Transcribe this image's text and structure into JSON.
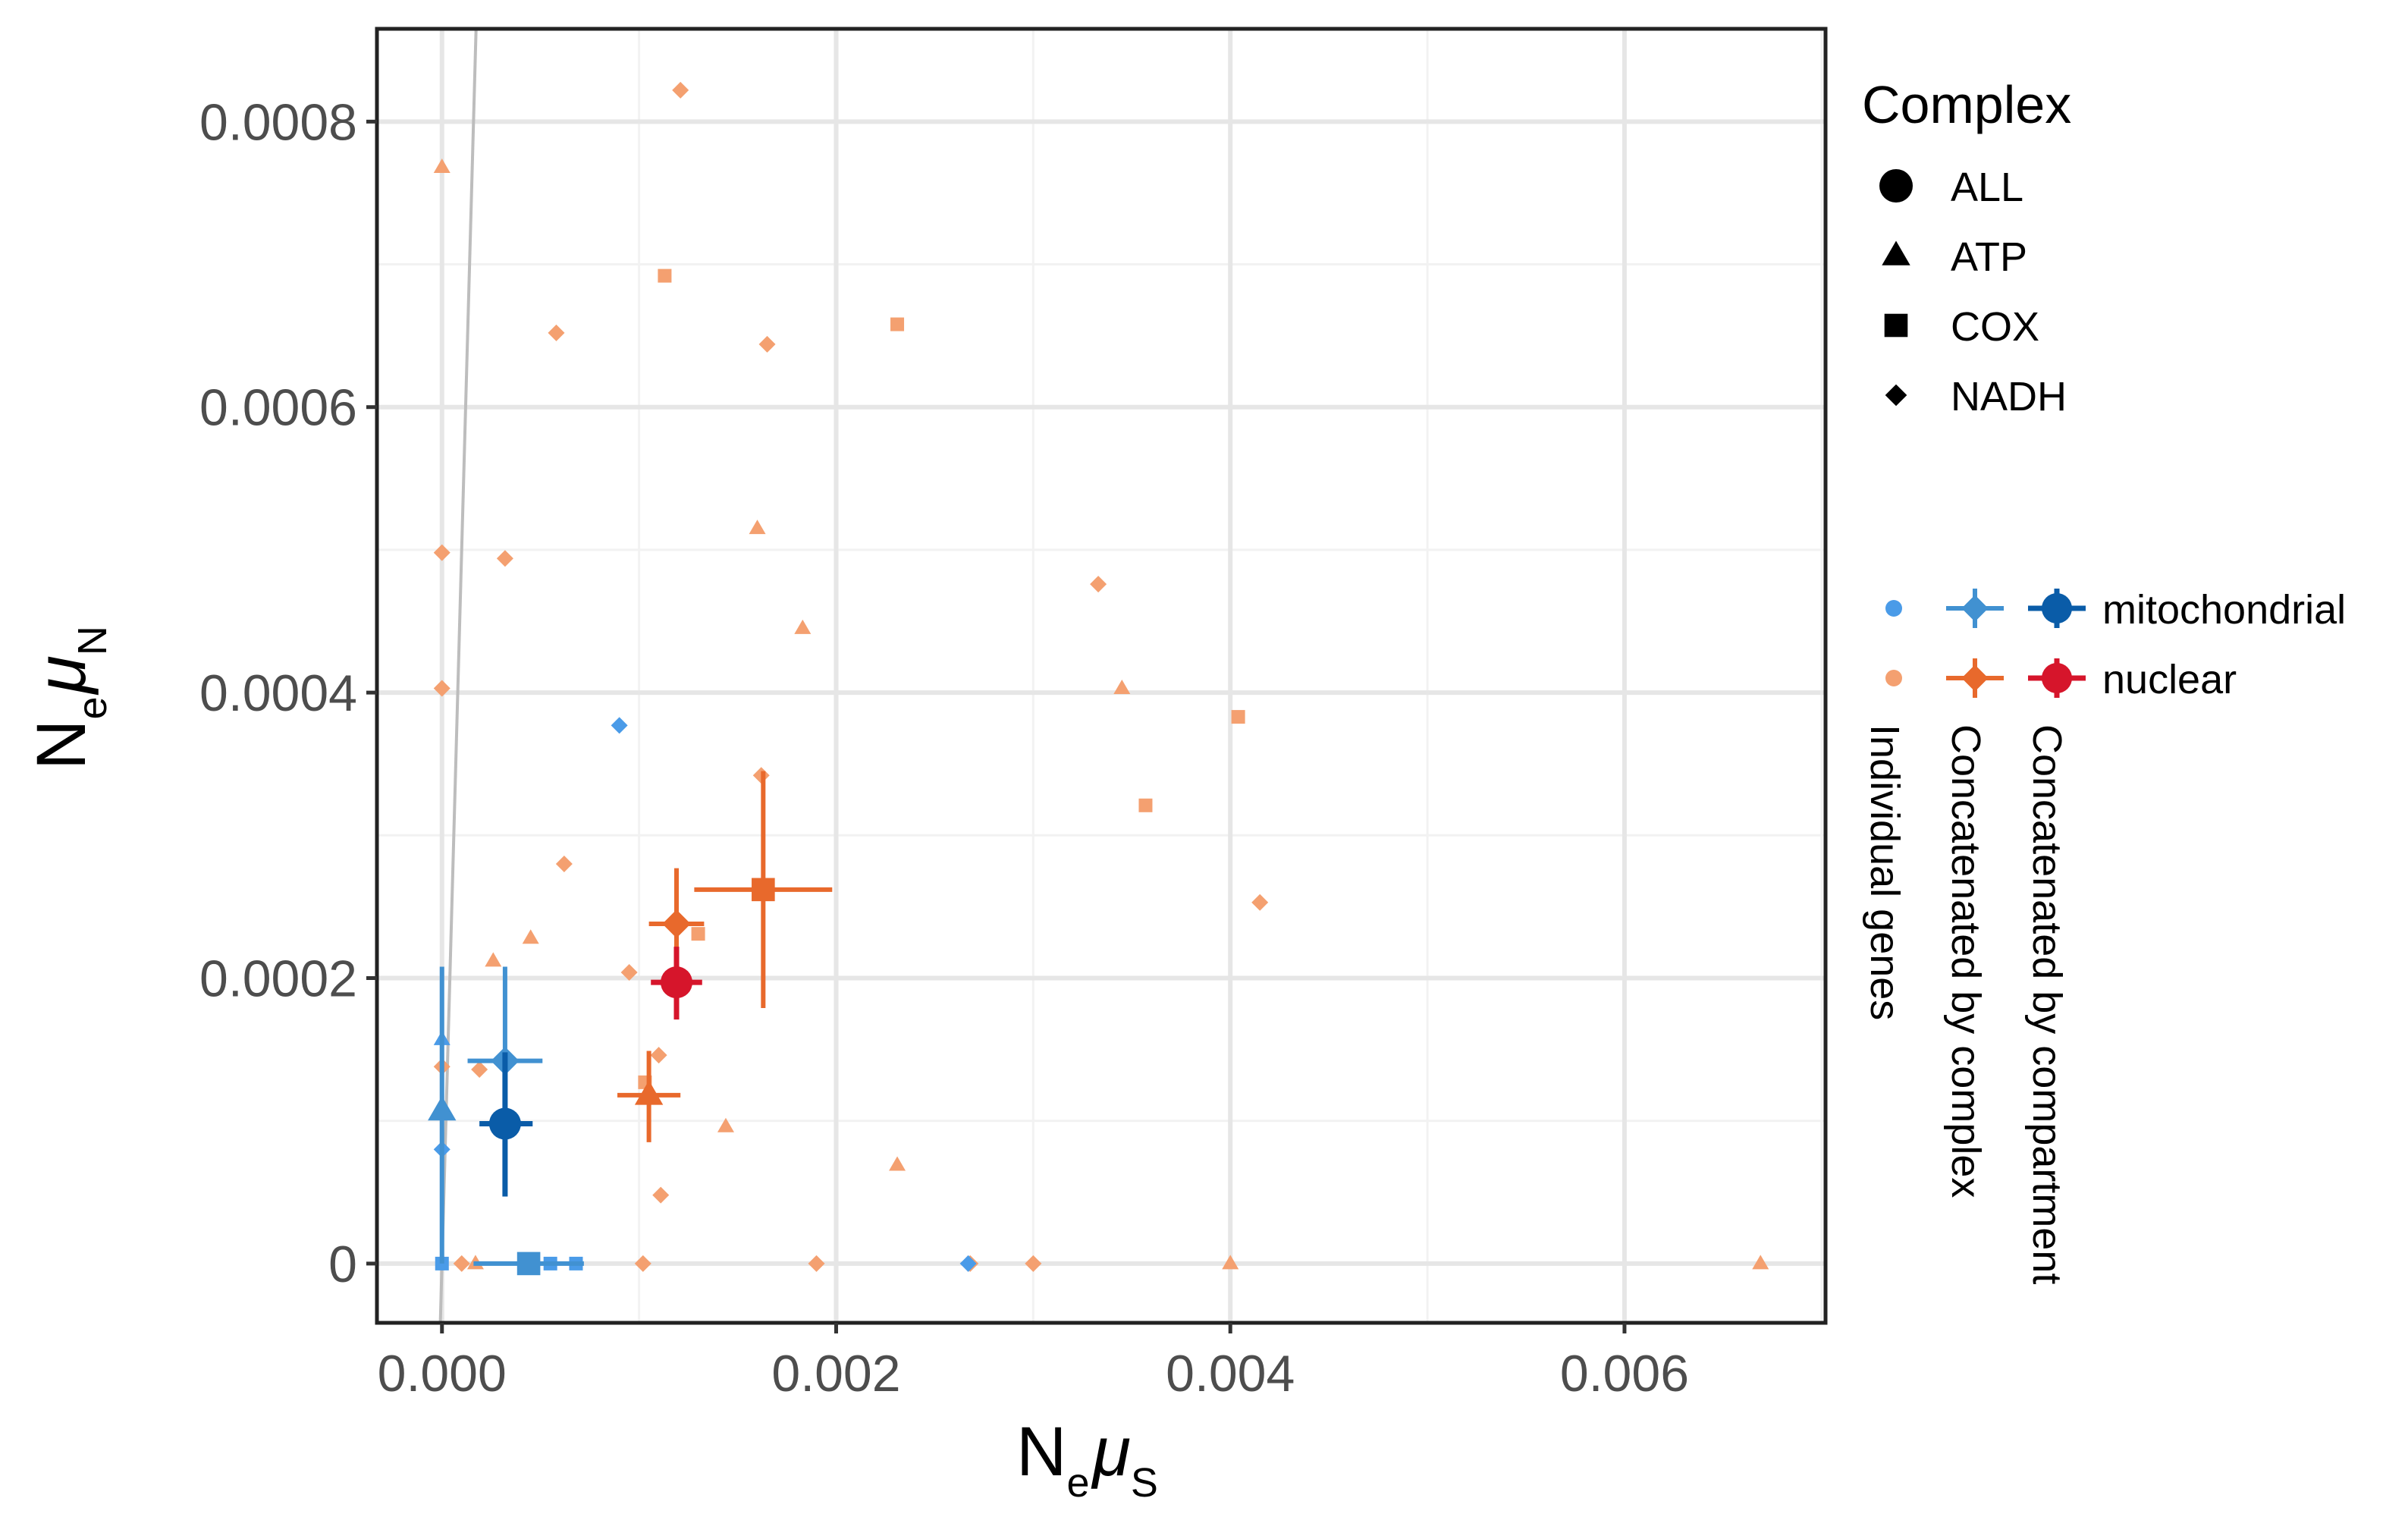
{
  "chart_data": {
    "type": "scatter",
    "xlabel": {
      "main": "N",
      "sub1": "e",
      "greek": "μ",
      "sub2": "S"
    },
    "ylabel": {
      "main": "N",
      "sub1": "e",
      "greek": "μ",
      "sub2": "N"
    },
    "xlim": [
      -0.00033,
      0.00702
    ],
    "ylim": [
      -4.15e-05,
      0.000865
    ],
    "x_ticks": [
      0,
      0.002,
      0.004,
      0.006
    ],
    "x_tick_labels": [
      "0.000",
      "0.002",
      "0.004",
      "0.006"
    ],
    "y_ticks": [
      0,
      0.0002,
      0.0004,
      0.0006,
      0.0008
    ],
    "y_tick_labels": [
      "0",
      "0.0002",
      "0.0004",
      "0.0006",
      "0.0008"
    ],
    "reference_line": {
      "description": "y = 5x",
      "slope": 5,
      "color": "#bdbdbd"
    },
    "colors": {
      "mito_individual": "#4a9be8",
      "mito_complex": "#4191d1",
      "mito_compartment": "#0a5ca8",
      "nuc_individual": "#f4a070",
      "nuc_complex": "#e8692c",
      "nuc_compartment": "#d6152b"
    },
    "legend": {
      "shape_title": "Complex",
      "shapes": [
        {
          "shape": "circle",
          "label": "ALL"
        },
        {
          "shape": "triangle",
          "label": "ATP"
        },
        {
          "shape": "square",
          "label": "COX"
        },
        {
          "shape": "diamond",
          "label": "NADH"
        }
      ],
      "compartments": [
        {
          "label": "mitochondrial",
          "colors": [
            "#4a9be8",
            "#4191d1",
            "#0a5ca8"
          ]
        },
        {
          "label": "nuclear",
          "colors": [
            "#f4a070",
            "#e8692c",
            "#d6152b"
          ]
        }
      ],
      "level_labels": [
        "Individual genes",
        "Concatenated by complex",
        "Concatenated by compartment"
      ]
    },
    "individual_genes": [
      {
        "compartment": "nuclear",
        "shape": "diamond",
        "x": 0.00121,
        "y": 0.000822
      },
      {
        "compartment": "nuclear",
        "shape": "triangle",
        "x": 0.0,
        "y": 0.000768
      },
      {
        "compartment": "nuclear",
        "shape": "square",
        "x": 0.00113,
        "y": 0.000692
      },
      {
        "compartment": "nuclear",
        "shape": "square",
        "x": 0.00231,
        "y": 0.000658
      },
      {
        "compartment": "nuclear",
        "shape": "diamond",
        "x": 0.00058,
        "y": 0.000652
      },
      {
        "compartment": "nuclear",
        "shape": "diamond",
        "x": 0.00165,
        "y": 0.000644
      },
      {
        "compartment": "nuclear",
        "shape": "triangle",
        "x": 0.0016,
        "y": 0.000515
      },
      {
        "compartment": "nuclear",
        "shape": "diamond",
        "x": 0.0,
        "y": 0.000498
      },
      {
        "compartment": "nuclear",
        "shape": "diamond",
        "x": 0.00032,
        "y": 0.000494
      },
      {
        "compartment": "nuclear",
        "shape": "diamond",
        "x": 0.00333,
        "y": 0.000476
      },
      {
        "compartment": "nuclear",
        "shape": "triangle",
        "x": 0.00183,
        "y": 0.000445
      },
      {
        "compartment": "nuclear",
        "shape": "triangle",
        "x": 0.00345,
        "y": 0.000403
      },
      {
        "compartment": "nuclear",
        "shape": "diamond",
        "x": 0.0,
        "y": 0.000403
      },
      {
        "compartment": "nuclear",
        "shape": "square",
        "x": 0.00404,
        "y": 0.000383
      },
      {
        "compartment": "nuclear",
        "shape": "diamond",
        "x": 0.00162,
        "y": 0.000342
      },
      {
        "compartment": "nuclear",
        "shape": "square",
        "x": 0.00357,
        "y": 0.000321
      },
      {
        "compartment": "nuclear",
        "shape": "diamond",
        "x": 0.00062,
        "y": 0.00028
      },
      {
        "compartment": "nuclear",
        "shape": "diamond",
        "x": 0.00415,
        "y": 0.000253
      },
      {
        "compartment": "nuclear",
        "shape": "square",
        "x": 0.0013,
        "y": 0.000231
      },
      {
        "compartment": "nuclear",
        "shape": "triangle",
        "x": 0.00045,
        "y": 0.000228
      },
      {
        "compartment": "nuclear",
        "shape": "triangle",
        "x": 0.00026,
        "y": 0.000212
      },
      {
        "compartment": "nuclear",
        "shape": "diamond",
        "x": 0.00095,
        "y": 0.000204
      },
      {
        "compartment": "nuclear",
        "shape": "diamond",
        "x": 0.0011,
        "y": 0.000146
      },
      {
        "compartment": "nuclear",
        "shape": "diamond",
        "x": 0.0,
        "y": 0.000138
      },
      {
        "compartment": "nuclear",
        "shape": "diamond",
        "x": 0.00019,
        "y": 0.000136
      },
      {
        "compartment": "nuclear",
        "shape": "square",
        "x": 0.00103,
        "y": 0.000127
      },
      {
        "compartment": "nuclear",
        "shape": "triangle",
        "x": 0.00144,
        "y": 9.6e-05
      },
      {
        "compartment": "nuclear",
        "shape": "triangle",
        "x": 0.00231,
        "y": 6.9e-05
      },
      {
        "compartment": "nuclear",
        "shape": "diamond",
        "x": 0.00111,
        "y": 4.8e-05
      },
      {
        "compartment": "nuclear",
        "shape": "diamond",
        "x": 0.0001,
        "y": 0.0
      },
      {
        "compartment": "nuclear",
        "shape": "triangle",
        "x": 0.00017,
        "y": 0.0
      },
      {
        "compartment": "nuclear",
        "shape": "diamond",
        "x": 0.00102,
        "y": 0.0
      },
      {
        "compartment": "nuclear",
        "shape": "diamond",
        "x": 0.0019,
        "y": 0.0
      },
      {
        "compartment": "nuclear",
        "shape": "diamond",
        "x": 0.00268,
        "y": 0.0
      },
      {
        "compartment": "nuclear",
        "shape": "diamond",
        "x": 0.003,
        "y": 0.0
      },
      {
        "compartment": "nuclear",
        "shape": "triangle",
        "x": 0.004,
        "y": 0.0
      },
      {
        "compartment": "nuclear",
        "shape": "triangle",
        "x": 0.00669,
        "y": 0.0
      },
      {
        "compartment": "mitochondrial",
        "shape": "diamond",
        "x": 0.0009,
        "y": 0.000377
      },
      {
        "compartment": "mitochondrial",
        "shape": "triangle",
        "x": 0.0,
        "y": 0.000157
      },
      {
        "compartment": "mitochondrial",
        "shape": "diamond",
        "x": 0.0,
        "y": 8e-05
      },
      {
        "compartment": "mitochondrial",
        "shape": "square",
        "x": 0.0,
        "y": 0.0
      },
      {
        "compartment": "mitochondrial",
        "shape": "square",
        "x": 0.00055,
        "y": 0.0
      },
      {
        "compartment": "mitochondrial",
        "shape": "square",
        "x": 0.00068,
        "y": 0.0
      },
      {
        "compartment": "mitochondrial",
        "shape": "diamond",
        "x": 0.00267,
        "y": 0.0
      }
    ],
    "concatenated_by_complex": [
      {
        "compartment": "nuclear",
        "shape": "square",
        "x": 0.00163,
        "y": 0.000262,
        "xerr": [
          0.00128,
          0.00198
        ],
        "yerr": [
          0.000179,
          0.000345
        ]
      },
      {
        "compartment": "nuclear",
        "shape": "diamond",
        "x": 0.00119,
        "y": 0.000238,
        "xerr": [
          0.00105,
          0.00133
        ],
        "yerr": [
          0.000199,
          0.000277
        ]
      },
      {
        "compartment": "nuclear",
        "shape": "triangle",
        "x": 0.00105,
        "y": 0.000118,
        "xerr": [
          0.00089,
          0.00121
        ],
        "yerr": [
          8.5e-05,
          0.000149
        ]
      },
      {
        "compartment": "mitochondrial",
        "shape": "diamond",
        "x": 0.00032,
        "y": 0.000142,
        "xerr": [
          0.00013,
          0.00051
        ],
        "yerr": [
          7.7e-05,
          0.000208
        ]
      },
      {
        "compartment": "mitochondrial",
        "shape": "triangle",
        "x": 0.0,
        "y": 0.000107,
        "xerr": [
          0.0,
          0.0
        ],
        "yerr": [
          0.0,
          0.000208
        ]
      },
      {
        "compartment": "mitochondrial",
        "shape": "square",
        "x": 0.00044,
        "y": 0.0,
        "xerr": [
          0.00016,
          0.00072
        ],
        "yerr": [
          0.0,
          0.0
        ]
      }
    ],
    "concatenated_by_compartment": [
      {
        "compartment": "nuclear",
        "shape": "circle",
        "x": 0.00119,
        "y": 0.000197,
        "xerr": [
          0.00106,
          0.00132
        ],
        "yerr": [
          0.000171,
          0.000222
        ]
      },
      {
        "compartment": "mitochondrial",
        "shape": "circle",
        "x": 0.00032,
        "y": 9.8e-05,
        "xerr": [
          0.00019,
          0.00046
        ],
        "yerr": [
          4.7e-05,
          0.000148
        ]
      }
    ]
  }
}
